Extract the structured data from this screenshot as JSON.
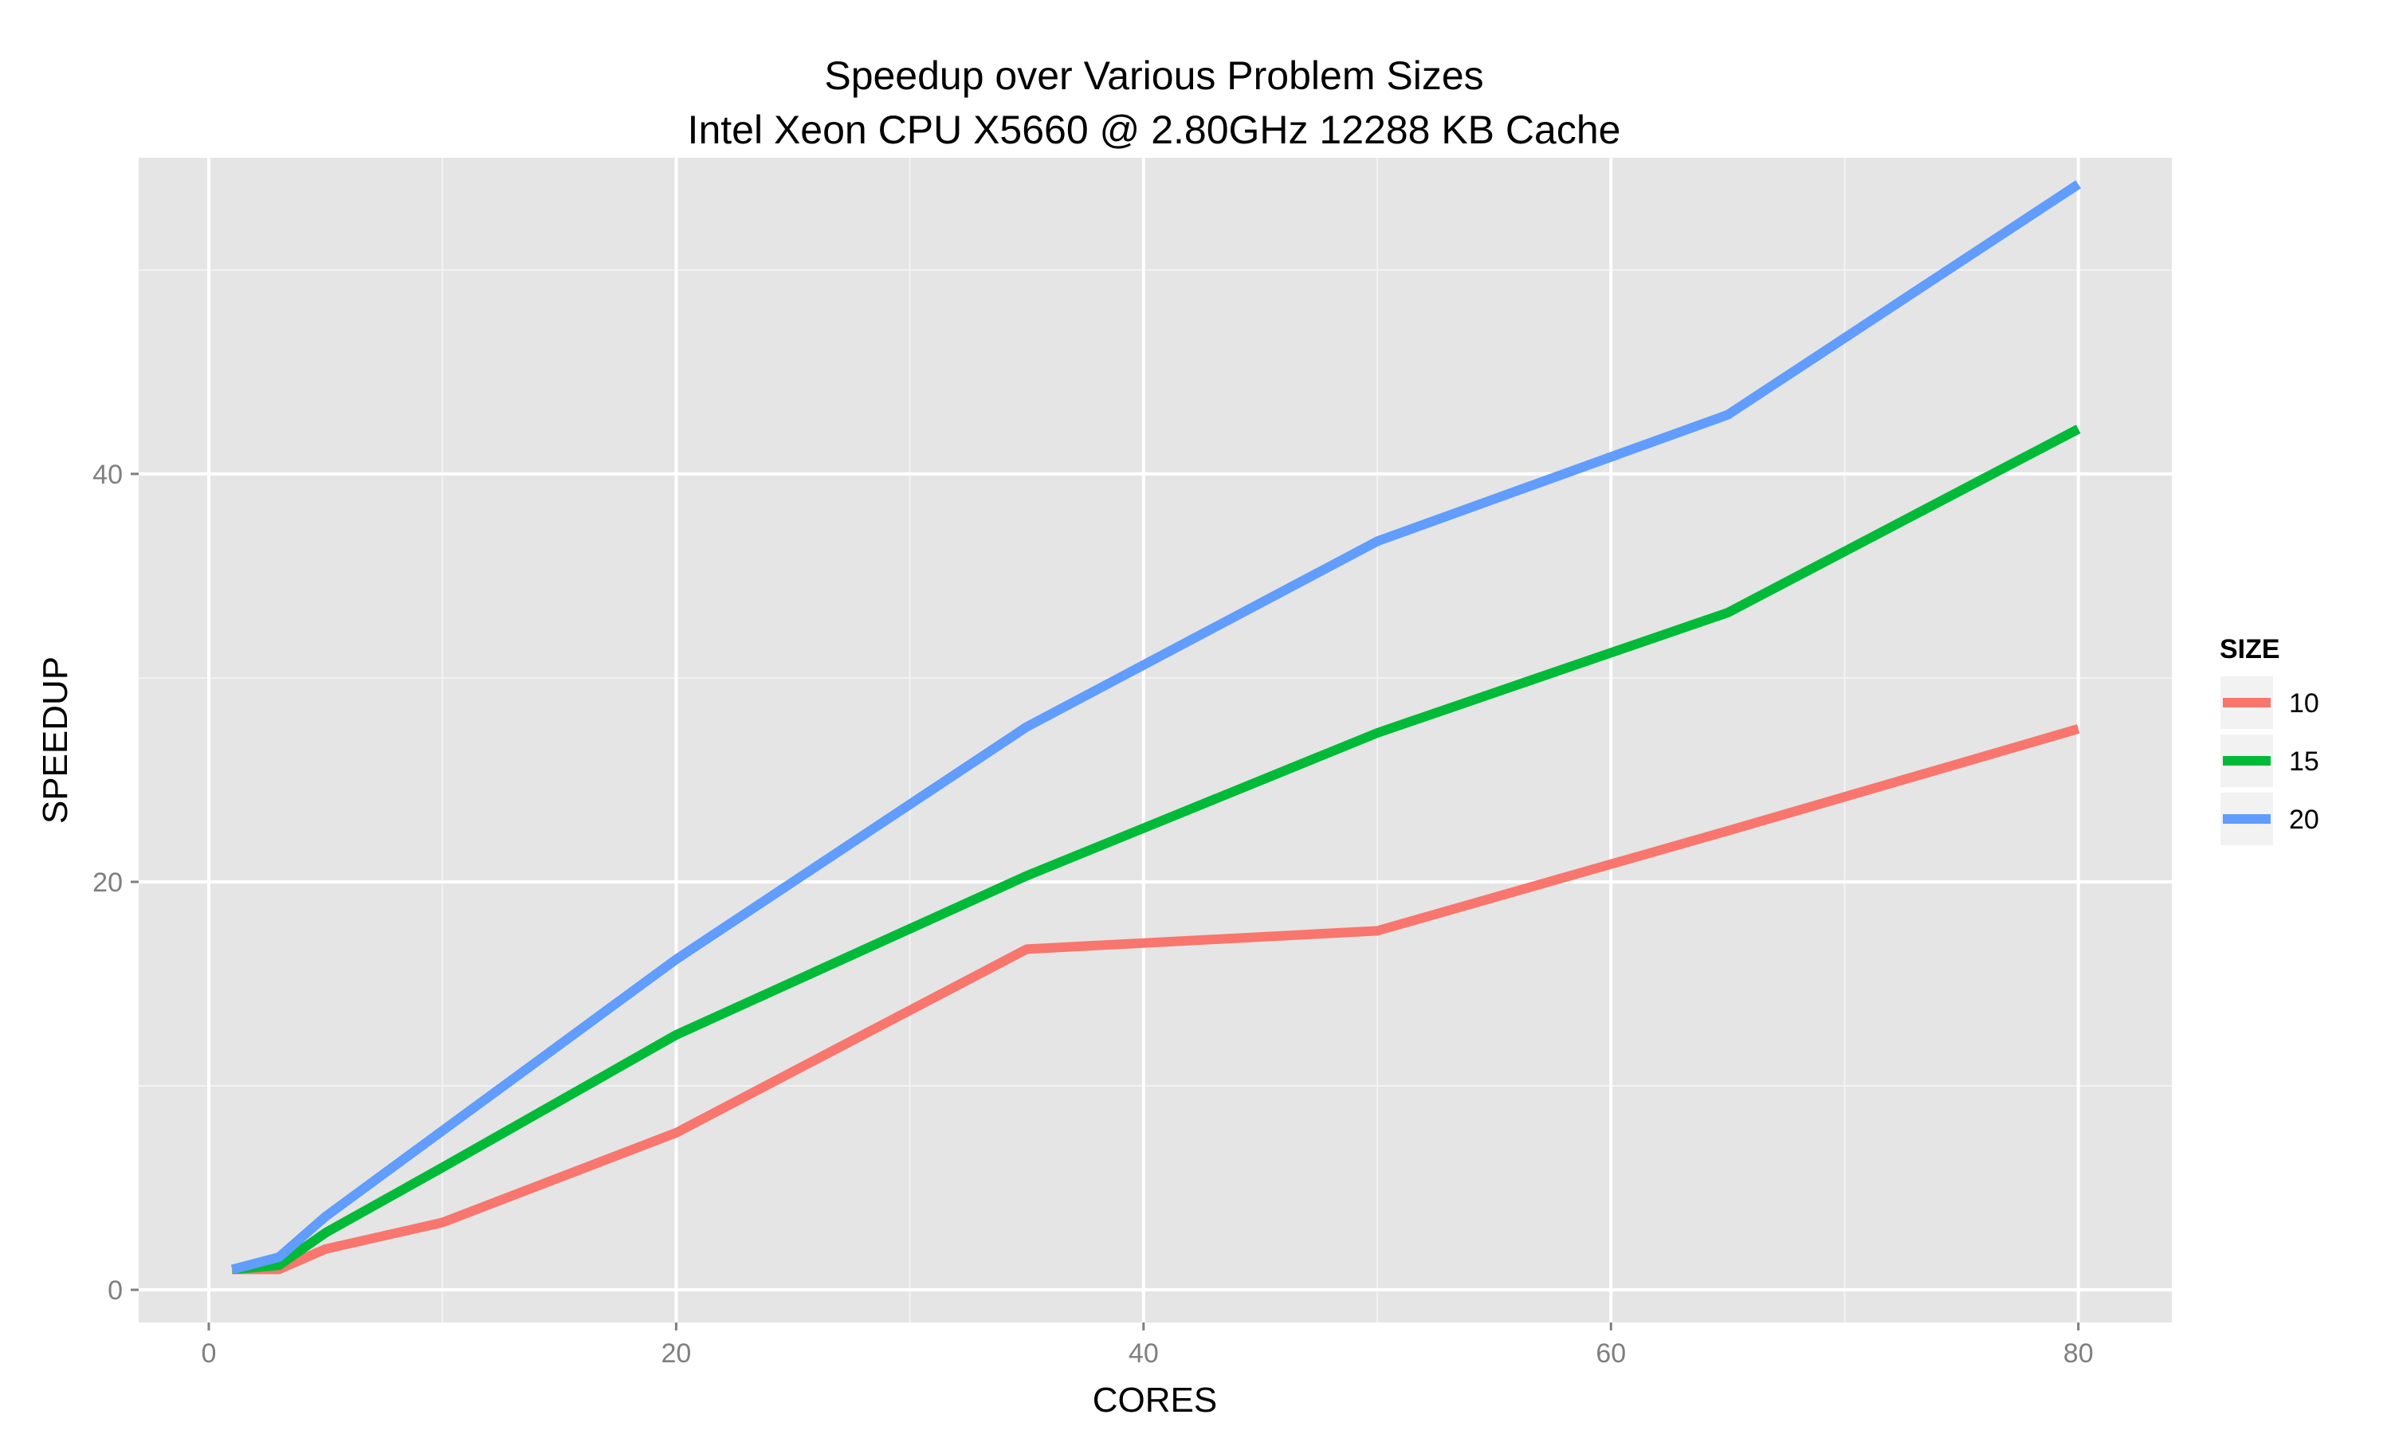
{
  "chart_data": {
    "type": "line",
    "title": "Speedup over Various Problem Sizes",
    "subtitle": "Intel Xeon CPU X5660 @ 2.80GHz 12288 KB Cache",
    "xlabel": "CORES",
    "ylabel": "SPEEDUP",
    "xlim": [
      -3,
      84
    ],
    "ylim": [
      -1.6,
      55.5
    ],
    "x_ticks": [
      0,
      20,
      40,
      60,
      80
    ],
    "x_tick_labels": [
      "0",
      "20",
      "40",
      "60",
      "80"
    ],
    "x_minor_ticks": [
      10,
      30,
      50,
      70
    ],
    "y_ticks": [
      0,
      20,
      40
    ],
    "y_tick_labels": [
      "0",
      "20",
      "40"
    ],
    "y_minor_ticks": [
      10,
      30,
      50
    ],
    "grid": true,
    "legend": {
      "title": "SIZE",
      "position": "right"
    },
    "series": [
      {
        "name": "10",
        "color": "#f8766d",
        "x": [
          1,
          3,
          5,
          10,
          20,
          35,
          50,
          65,
          80
        ],
        "y": [
          1.0,
          1.0,
          2.0,
          3.3,
          7.7,
          16.7,
          17.6,
          22.5,
          27.5
        ]
      },
      {
        "name": "15",
        "color": "#00ba38",
        "x": [
          1,
          3,
          5,
          10,
          20,
          35,
          50,
          65,
          80
        ],
        "y": [
          1.0,
          1.2,
          2.8,
          6.0,
          12.5,
          20.3,
          27.3,
          33.2,
          42.2
        ]
      },
      {
        "name": "20",
        "color": "#619cff",
        "x": [
          1,
          3,
          5,
          10,
          20,
          35,
          50,
          65,
          80
        ],
        "y": [
          1.0,
          1.6,
          3.6,
          7.8,
          16.2,
          27.6,
          36.7,
          42.9,
          54.2
        ]
      }
    ]
  }
}
